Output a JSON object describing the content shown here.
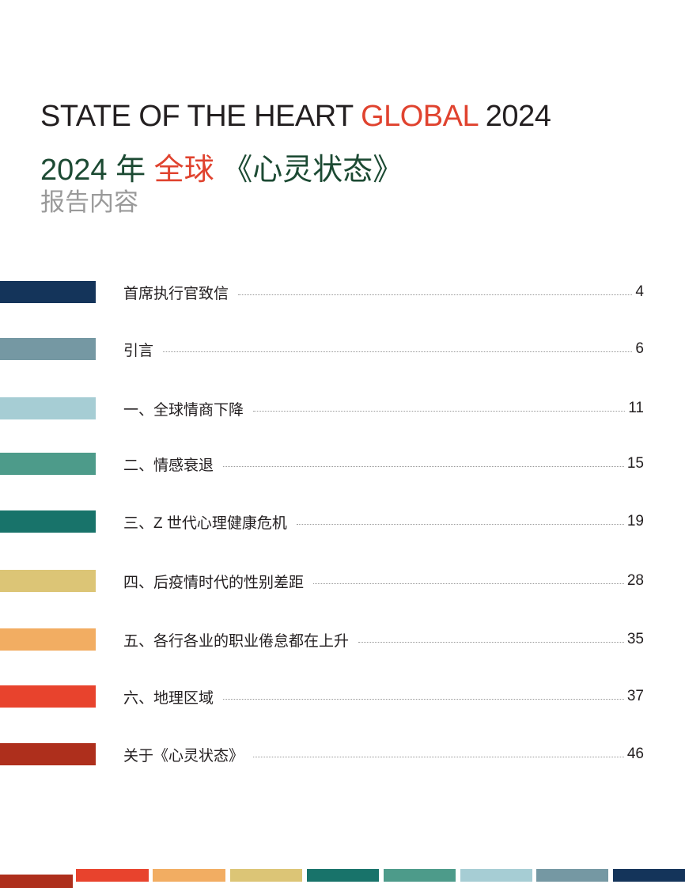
{
  "header": {
    "title_en": [
      "STATE OF THE HEART",
      "GLOBAL",
      "2024"
    ],
    "title_zh": [
      "2024 年",
      "全球",
      "《心灵状态》"
    ],
    "subtitle": "报告内容"
  },
  "toc": [
    {
      "label": "首席执行官致信",
      "page": 4
    },
    {
      "label": "引言",
      "page": 6
    },
    {
      "label": "一、全球情商下降",
      "page": 11
    },
    {
      "label": "二、情感衰退",
      "page": 15
    },
    {
      "label": "三、Z 世代心理健康危机",
      "page": 19
    },
    {
      "label": "四、后疫情时代的性别差距",
      "page": 28
    },
    {
      "label": "五、各行各业的职业倦怠都在上升",
      "page": 35
    },
    {
      "label": "六、地理区域",
      "page": 37
    },
    {
      "label": "关于《心灵状态》",
      "page": 46
    }
  ]
}
